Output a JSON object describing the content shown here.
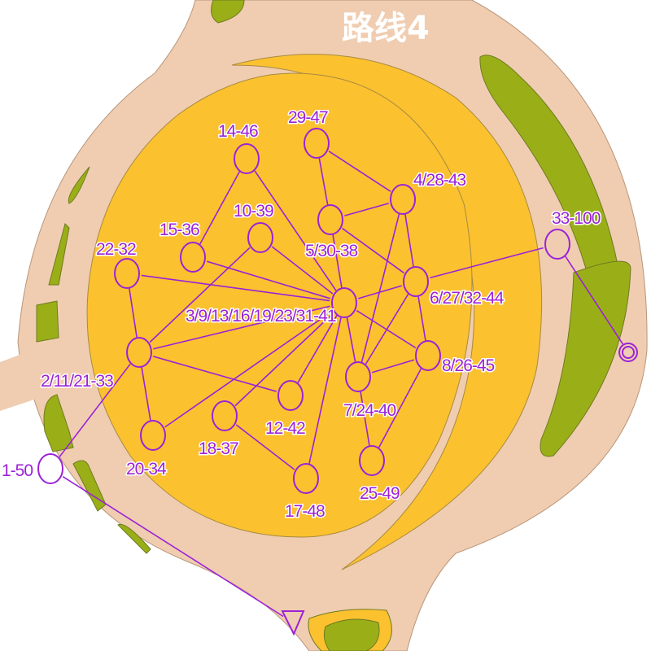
{
  "title": "路线4",
  "colors": {
    "road": "#f0cdb0",
    "area": "#fbc12f",
    "vegetation": "#9aaf17",
    "course": "#9b22d8",
    "background": "#ffffff"
  },
  "controls": [
    {
      "id": "c",
      "label": "3/9/13/16/19/23/31-41"
    },
    {
      "id": "n14",
      "label": "14-46"
    },
    {
      "id": "n29",
      "label": "29-47"
    },
    {
      "id": "n4",
      "label": "4/28-43"
    },
    {
      "id": "n5",
      "label": "5/30-38"
    },
    {
      "id": "n10",
      "label": "10-39"
    },
    {
      "id": "n15",
      "label": "15-36"
    },
    {
      "id": "n22",
      "label": "22-32"
    },
    {
      "id": "n6",
      "label": "6/27/32-44"
    },
    {
      "id": "n33",
      "label": "33-100"
    },
    {
      "id": "n2",
      "label": "2/11/21-33"
    },
    {
      "id": "n8",
      "label": "8/26-45"
    },
    {
      "id": "n7",
      "label": "7/24-40"
    },
    {
      "id": "n12",
      "label": "12-42"
    },
    {
      "id": "n18",
      "label": "18-37"
    },
    {
      "id": "n20",
      "label": "20-34"
    },
    {
      "id": "n17",
      "label": "17-48"
    },
    {
      "id": "n25",
      "label": "25-49"
    },
    {
      "id": "n1",
      "label": "1-50"
    }
  ],
  "start_symbol": "triangle",
  "finish_symbol": "double-circle",
  "legs": [
    [
      "n14",
      "n15"
    ],
    [
      "n14",
      "c"
    ],
    [
      "n29",
      "n5"
    ],
    [
      "n29",
      "n4"
    ],
    [
      "n5",
      "n4"
    ],
    [
      "n5",
      "n6"
    ],
    [
      "n5",
      "c"
    ],
    [
      "n4",
      "n7"
    ],
    [
      "n4",
      "n6"
    ],
    [
      "n10",
      "c"
    ],
    [
      "n10",
      "n2"
    ],
    [
      "n15",
      "c"
    ],
    [
      "n22",
      "c"
    ],
    [
      "n22",
      "n2"
    ],
    [
      "n2",
      "c"
    ],
    [
      "n2",
      "n12"
    ],
    [
      "n2",
      "n20"
    ],
    [
      "n20",
      "c"
    ],
    [
      "n18",
      "c"
    ],
    [
      "n18",
      "n17"
    ],
    [
      "n12",
      "c"
    ],
    [
      "n17",
      "c"
    ],
    [
      "c",
      "n6"
    ],
    [
      "c",
      "n8"
    ],
    [
      "c",
      "n7"
    ],
    [
      "n6",
      "n33"
    ],
    [
      "n6",
      "n8"
    ],
    [
      "n6",
      "n7"
    ],
    [
      "n8",
      "n7"
    ],
    [
      "n8",
      "n25"
    ],
    [
      "n7",
      "n25"
    ],
    [
      "n33",
      "finish"
    ],
    [
      "n2",
      "n1"
    ],
    [
      "n1",
      "start"
    ]
  ]
}
